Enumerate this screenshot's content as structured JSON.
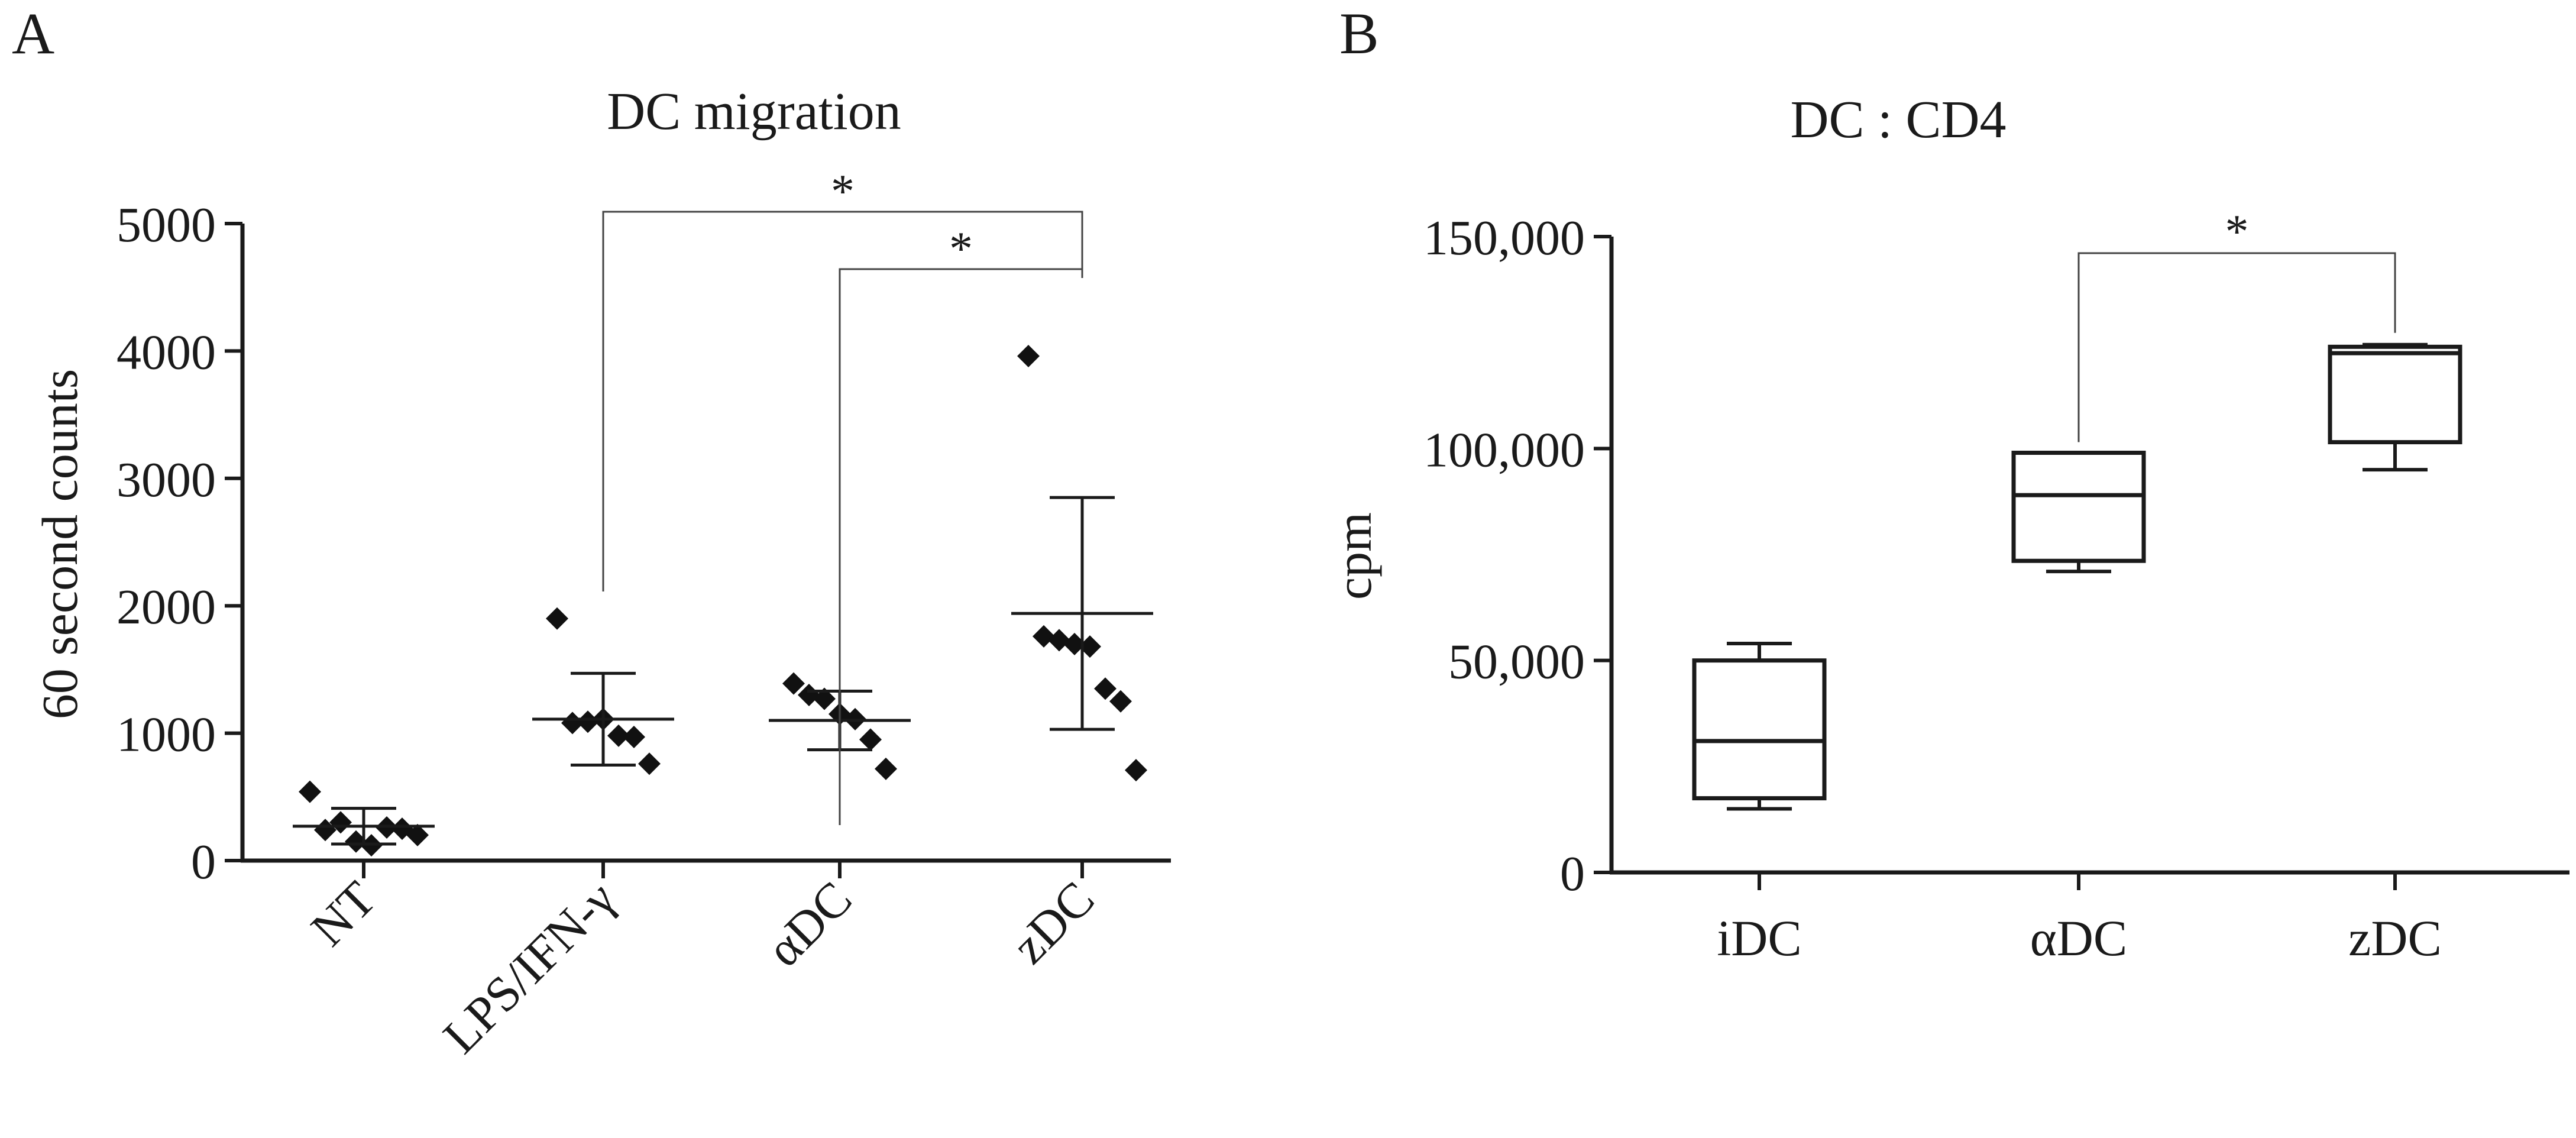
{
  "chart_data": [
    {
      "panel": "A",
      "type": "scatter",
      "title": "DC migration",
      "xlabel": "",
      "ylabel": "60 second counts",
      "ylim": [
        0,
        5000
      ],
      "y_ticks": [
        "0",
        "1000",
        "2000",
        "3000",
        "4000",
        "5000"
      ],
      "categories": [
        "NT",
        "LPS/IFN-γ",
        "αDC",
        "zDC"
      ],
      "points": [
        [
          540,
          240,
          300,
          150,
          120,
          260,
          250,
          200
        ],
        [
          1900,
          1080,
          1090,
          1110,
          980,
          970,
          760
        ],
        [
          1390,
          1300,
          1270,
          1150,
          1110,
          950,
          720
        ],
        [
          3960,
          1760,
          1730,
          1700,
          1680,
          1350,
          1250,
          710
        ]
      ],
      "mean": [
        270,
        1110,
        1100,
        1940
      ],
      "sd_low": [
        130,
        750,
        870,
        1030
      ],
      "sd_high": [
        410,
        1470,
        1330,
        2850
      ],
      "significance": [
        {
          "from": "LPS/IFN-γ",
          "to": "zDC",
          "label": "*"
        },
        {
          "from": "αDC",
          "to": "zDC",
          "label": "*"
        }
      ]
    },
    {
      "panel": "B",
      "type": "box",
      "title": "DC : CD4",
      "xlabel": "",
      "ylabel": "cpm",
      "ylim": [
        0,
        150000
      ],
      "y_ticks": [
        "0",
        "50,000",
        "100,000",
        "150,000"
      ],
      "categories": [
        "iDC",
        "αDC",
        "zDC"
      ],
      "boxes": [
        {
          "min": 15000,
          "q1": 17500,
          "median": 31000,
          "q3": 50000,
          "max": 54000
        },
        {
          "min": 71000,
          "q1": 73500,
          "median": 89000,
          "q3": 99000,
          "max": 99000
        },
        {
          "min": 95000,
          "q1": 101500,
          "median": 122500,
          "q3": 124000,
          "max": 124500
        }
      ],
      "significance": [
        {
          "from": "αDC",
          "to": "zDC",
          "label": "*"
        }
      ]
    }
  ]
}
